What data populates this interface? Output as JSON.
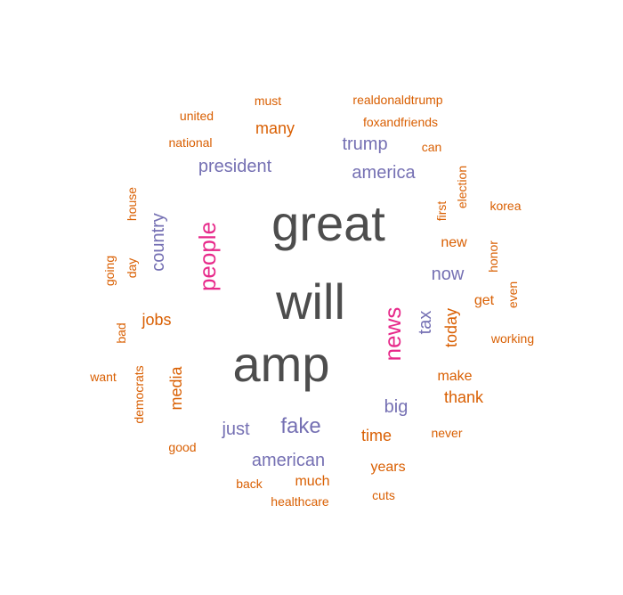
{
  "palette": {
    "top": "#4d4d4d",
    "high": "#e7298a",
    "mid": "#7570b3",
    "low": "#d95f02"
  },
  "words": [
    {
      "text": "great",
      "tier": "top"
    },
    {
      "text": "will",
      "tier": "top"
    },
    {
      "text": "amp",
      "tier": "top"
    },
    {
      "text": "people",
      "tier": "high"
    },
    {
      "text": "news",
      "tier": "high"
    },
    {
      "text": "president",
      "tier": "mid"
    },
    {
      "text": "trump",
      "tier": "mid"
    },
    {
      "text": "america",
      "tier": "mid"
    },
    {
      "text": "country",
      "tier": "mid"
    },
    {
      "text": "now",
      "tier": "mid"
    },
    {
      "text": "tax",
      "tier": "mid"
    },
    {
      "text": "fake",
      "tier": "mid"
    },
    {
      "text": "big",
      "tier": "mid"
    },
    {
      "text": "just",
      "tier": "mid"
    },
    {
      "text": "american",
      "tier": "mid"
    },
    {
      "text": "must",
      "tier": "low"
    },
    {
      "text": "realdonaldtrump",
      "tier": "low"
    },
    {
      "text": "united",
      "tier": "low"
    },
    {
      "text": "foxandfriends",
      "tier": "low"
    },
    {
      "text": "many",
      "tier": "low"
    },
    {
      "text": "national",
      "tier": "low"
    },
    {
      "text": "can",
      "tier": "low"
    },
    {
      "text": "election",
      "tier": "low"
    },
    {
      "text": "first",
      "tier": "low"
    },
    {
      "text": "korea",
      "tier": "low"
    },
    {
      "text": "house",
      "tier": "low"
    },
    {
      "text": "new",
      "tier": "low"
    },
    {
      "text": "honor",
      "tier": "low"
    },
    {
      "text": "going",
      "tier": "low"
    },
    {
      "text": "day",
      "tier": "low"
    },
    {
      "text": "even",
      "tier": "low"
    },
    {
      "text": "get",
      "tier": "low"
    },
    {
      "text": "jobs",
      "tier": "low"
    },
    {
      "text": "today",
      "tier": "low"
    },
    {
      "text": "bad",
      "tier": "low"
    },
    {
      "text": "working",
      "tier": "low"
    },
    {
      "text": "want",
      "tier": "low"
    },
    {
      "text": "democrats",
      "tier": "low"
    },
    {
      "text": "media",
      "tier": "low"
    },
    {
      "text": "make",
      "tier": "low"
    },
    {
      "text": "thank",
      "tier": "low"
    },
    {
      "text": "never",
      "tier": "low"
    },
    {
      "text": "time",
      "tier": "low"
    },
    {
      "text": "good",
      "tier": "low"
    },
    {
      "text": "years",
      "tier": "low"
    },
    {
      "text": "back",
      "tier": "low"
    },
    {
      "text": "much",
      "tier": "low"
    },
    {
      "text": "cuts",
      "tier": "low"
    },
    {
      "text": "healthcare",
      "tier": "low"
    }
  ]
}
